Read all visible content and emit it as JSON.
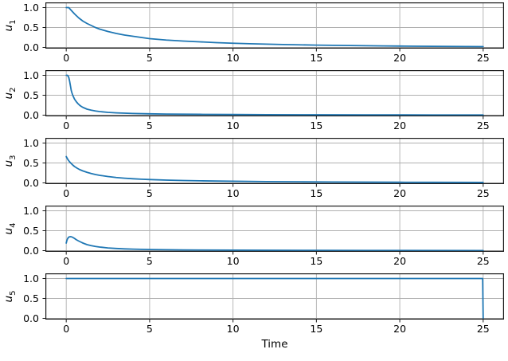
{
  "figure": {
    "background": "#ffffff"
  },
  "chart_data": {
    "type": "line",
    "layout": "5 vertically stacked subplots with shared time axis",
    "title": "",
    "xlabel": "Time",
    "xlim": [
      -1.25,
      26.25
    ],
    "ylim": [
      -0.03,
      1.13
    ],
    "xticks": [
      0,
      5,
      10,
      15,
      20,
      25
    ],
    "xtick_labels": [
      "0",
      "5",
      "10",
      "15",
      "20",
      "25"
    ],
    "yticks": [
      0.0,
      0.5,
      1.0
    ],
    "ytick_labels": [
      "0.0",
      "0.5",
      "1.0"
    ],
    "grid": true,
    "legend": false,
    "line_color": "#1f77b4",
    "grid_color": "#b0b0b0",
    "axis_color": "#1a1a1a",
    "subplots": [
      {
        "ylabel_base": "u",
        "ylabel_sub": "1",
        "x": [
          0,
          0.15,
          0.3,
          0.5,
          0.75,
          1,
          1.25,
          1.5,
          1.75,
          2,
          2.5,
          3,
          3.5,
          4,
          4.5,
          5,
          6,
          7,
          8,
          9,
          10,
          11,
          12,
          13,
          14,
          15,
          16,
          17,
          18,
          19,
          20,
          21,
          22,
          23,
          24,
          25
        ],
        "y": [
          1.0,
          1.0,
          0.93,
          0.84,
          0.74,
          0.66,
          0.6,
          0.55,
          0.5,
          0.46,
          0.4,
          0.35,
          0.31,
          0.28,
          0.25,
          0.22,
          0.185,
          0.16,
          0.14,
          0.12,
          0.105,
          0.092,
          0.082,
          0.073,
          0.065,
          0.058,
          0.052,
          0.047,
          0.042,
          0.038,
          0.034,
          0.03,
          0.027,
          0.025,
          0.022,
          0.02
        ]
      },
      {
        "ylabel_base": "u",
        "ylabel_sub": "2",
        "x": [
          0,
          0.08,
          0.15,
          0.2,
          0.25,
          0.3,
          0.35,
          0.4,
          0.5,
          0.6,
          0.7,
          0.8,
          0.9,
          1,
          1.25,
          1.5,
          1.75,
          2,
          2.5,
          3,
          3.5,
          4,
          5,
          6,
          7,
          8,
          10,
          12,
          15,
          18,
          20,
          22,
          25
        ],
        "y": [
          1.0,
          1.0,
          0.95,
          0.86,
          0.74,
          0.62,
          0.55,
          0.49,
          0.4,
          0.34,
          0.29,
          0.25,
          0.22,
          0.195,
          0.15,
          0.125,
          0.105,
          0.09,
          0.07,
          0.058,
          0.05,
          0.043,
          0.034,
          0.028,
          0.024,
          0.021,
          0.016,
          0.013,
          0.009,
          0.007,
          0.006,
          0.005,
          0.004
        ]
      },
      {
        "ylabel_base": "u",
        "ylabel_sub": "3",
        "x": [
          0,
          0.1,
          0.2,
          0.3,
          0.4,
          0.5,
          0.65,
          0.8,
          1,
          1.25,
          1.5,
          1.75,
          2,
          2.5,
          3,
          3.5,
          4,
          4.5,
          5,
          6,
          7,
          8,
          9,
          10,
          12,
          14,
          16,
          18,
          20,
          22,
          25
        ],
        "y": [
          0.66,
          0.585,
          0.53,
          0.485,
          0.445,
          0.41,
          0.37,
          0.335,
          0.3,
          0.265,
          0.235,
          0.21,
          0.19,
          0.16,
          0.135,
          0.118,
          0.104,
          0.093,
          0.084,
          0.07,
          0.06,
          0.052,
          0.046,
          0.041,
          0.033,
          0.027,
          0.023,
          0.019,
          0.016,
          0.014,
          0.011
        ]
      },
      {
        "ylabel_base": "u",
        "ylabel_sub": "4",
        "x": [
          0,
          0.03,
          0.07,
          0.12,
          0.18,
          0.25,
          0.33,
          0.4,
          0.5,
          0.6,
          0.75,
          0.9,
          1,
          1.25,
          1.5,
          1.75,
          2,
          2.5,
          3,
          3.5,
          4,
          5,
          6,
          7,
          8,
          10,
          12,
          15,
          18,
          20,
          25
        ],
        "y": [
          0.19,
          0.24,
          0.29,
          0.325,
          0.345,
          0.35,
          0.345,
          0.33,
          0.305,
          0.275,
          0.24,
          0.21,
          0.19,
          0.15,
          0.125,
          0.105,
          0.09,
          0.068,
          0.054,
          0.044,
          0.037,
          0.028,
          0.022,
          0.018,
          0.015,
          0.011,
          0.009,
          0.006,
          0.005,
          0.004,
          0.003
        ]
      },
      {
        "ylabel_base": "u",
        "ylabel_sub": "5",
        "x": [
          0,
          24.97,
          25
        ],
        "y": [
          1.0,
          1.0,
          0.0
        ]
      }
    ]
  }
}
